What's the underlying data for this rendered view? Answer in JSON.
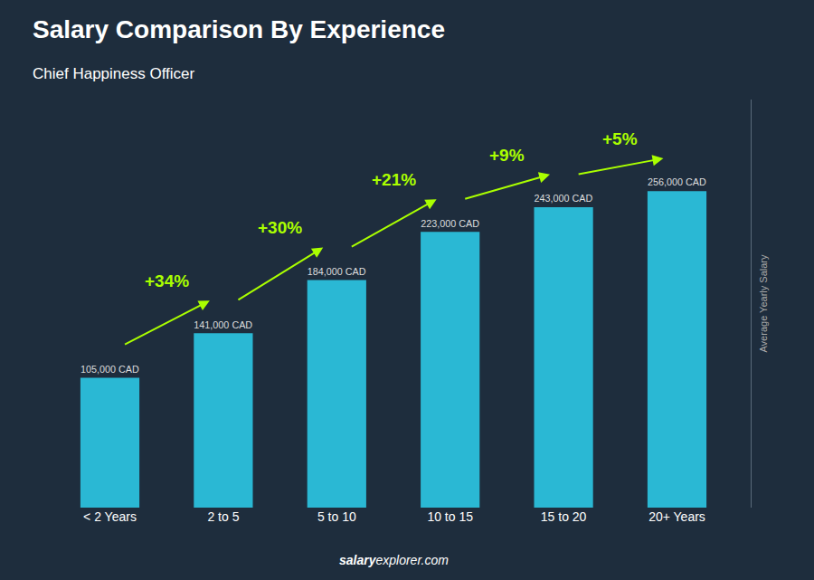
{
  "chart_data": {
    "type": "bar",
    "title": "Salary Comparison By Experience",
    "subtitle": "Chief Happiness Officer",
    "ylabel": "Average Yearly Salary",
    "categories": [
      "< 2 Years",
      "2 to 5",
      "5 to 10",
      "10 to 15",
      "15 to 20",
      "20+ Years"
    ],
    "values": [
      105000,
      141000,
      184000,
      223000,
      243000,
      256000
    ],
    "value_labels": [
      "105,000 CAD",
      "141,000 CAD",
      "184,000 CAD",
      "223,000 CAD",
      "243,000 CAD",
      "256,000 CAD"
    ],
    "data_labels": true,
    "color": "#2ab8d4",
    "ylim": [
      0,
      330000
    ],
    "tick_labels": "x",
    "grid": false,
    "annotations": [
      {
        "text": "+34%",
        "from": "< 2 Years",
        "to": "2 to 5",
        "color": "#aaff00"
      },
      {
        "text": "+30%",
        "from": "2 to 5",
        "to": "5 to 10",
        "color": "#aaff00"
      },
      {
        "text": "+21%",
        "from": "5 to 10",
        "to": "10 to 15",
        "color": "#aaff00"
      },
      {
        "text": "+9%",
        "from": "10 to 15",
        "to": "15 to 20",
        "color": "#aaff00"
      },
      {
        "text": "+5%",
        "from": "15 to 20",
        "to": "20+ Years",
        "color": "#aaff00"
      }
    ],
    "footer": [
      "salary",
      "explorer.com"
    ]
  }
}
